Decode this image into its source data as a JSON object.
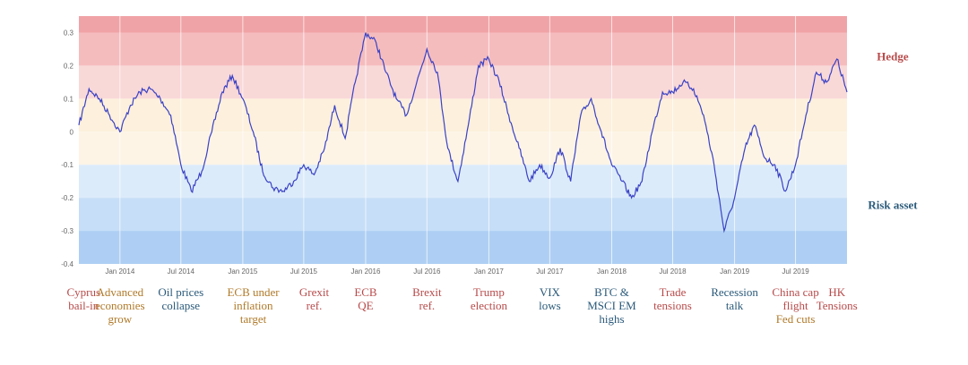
{
  "chart_data": {
    "type": "line",
    "title": "",
    "xlabel": "",
    "ylabel": "",
    "ylim": [
      -0.4,
      0.35
    ],
    "xlim": [
      "2013-09-01",
      "2019-12-01"
    ],
    "grid": "vertical",
    "y_ticks": [
      {
        "value": 0.3,
        "label": "0.3"
      },
      {
        "value": 0.2,
        "label": "0.2"
      },
      {
        "value": 0.1,
        "label": "0.1"
      },
      {
        "value": 0,
        "label": "0"
      },
      {
        "value": -0.1,
        "label": "-0.1"
      },
      {
        "value": -0.2,
        "label": "-0.2"
      },
      {
        "value": -0.3,
        "label": "-0.3"
      },
      {
        "value": -0.4,
        "label": "-0.4"
      }
    ],
    "x_ticks": [
      {
        "date": "2014-01-01",
        "label": "Jan 2014"
      },
      {
        "date": "2014-07-01",
        "label": "Jul 2014"
      },
      {
        "date": "2015-01-01",
        "label": "Jan 2015"
      },
      {
        "date": "2015-07-01",
        "label": "Jul 2015"
      },
      {
        "date": "2016-01-01",
        "label": "Jan 2016"
      },
      {
        "date": "2016-07-01",
        "label": "Jul 2016"
      },
      {
        "date": "2017-01-01",
        "label": "Jan 2017"
      },
      {
        "date": "2017-07-01",
        "label": "Jul 2017"
      },
      {
        "date": "2018-01-01",
        "label": "Jan 2018"
      },
      {
        "date": "2018-07-01",
        "label": "Jul 2018"
      },
      {
        "date": "2019-01-01",
        "label": "Jan 2019"
      },
      {
        "date": "2019-07-01",
        "label": "Jul 2019"
      }
    ],
    "bands": [
      {
        "from": 0.3,
        "to": 0.35,
        "color": "#f0a3a6"
      },
      {
        "from": 0.2,
        "to": 0.3,
        "color": "#f5bcbe"
      },
      {
        "from": 0.1,
        "to": 0.2,
        "color": "#f9d8d8"
      },
      {
        "from": 0,
        "to": 0.1,
        "color": "#fdf0dc"
      },
      {
        "from": -0.1,
        "to": 0,
        "color": "#fdf4e6"
      },
      {
        "from": -0.2,
        "to": -0.1,
        "color": "#dcebfa"
      },
      {
        "from": -0.3,
        "to": -0.2,
        "color": "#c6def7"
      },
      {
        "from": -0.4,
        "to": -0.3,
        "color": "#aecff3"
      }
    ],
    "line_color": "#3a42c4",
    "zone_labels": [
      {
        "text": "Hedge",
        "value": 0.23,
        "color": "#b84a4a"
      },
      {
        "text": "Risk asset",
        "value": -0.22,
        "color": "#2b5a7a"
      }
    ],
    "series": [
      {
        "x": [
          "2013-09-01",
          "2013-10-01",
          "2013-11-01",
          "2013-12-01",
          "2014-01-01",
          "2014-02-01",
          "2014-03-01",
          "2014-04-01",
          "2014-05-01",
          "2014-06-01",
          "2014-07-01",
          "2014-08-01",
          "2014-09-01",
          "2014-10-01",
          "2014-11-01",
          "2014-12-01",
          "2015-01-01",
          "2015-02-01",
          "2015-03-01",
          "2015-04-01",
          "2015-05-01",
          "2015-06-01",
          "2015-07-01",
          "2015-08-01",
          "2015-09-01",
          "2015-10-01",
          "2015-11-01",
          "2015-12-01",
          "2016-01-01",
          "2016-02-01",
          "2016-03-01",
          "2016-04-01",
          "2016-05-01",
          "2016-06-01",
          "2016-07-01",
          "2016-08-01",
          "2016-09-01",
          "2016-10-01",
          "2016-11-01",
          "2016-12-01",
          "2017-01-01",
          "2017-02-01",
          "2017-03-01",
          "2017-04-01",
          "2017-05-01",
          "2017-06-01",
          "2017-07-01",
          "2017-08-01",
          "2017-09-01",
          "2017-10-01",
          "2017-11-01",
          "2017-12-01",
          "2018-01-01",
          "2018-02-01",
          "2018-03-01",
          "2018-04-01",
          "2018-05-01",
          "2018-06-01",
          "2018-07-01",
          "2018-08-01",
          "2018-09-01",
          "2018-10-01",
          "2018-11-01",
          "2018-12-01",
          "2019-01-01",
          "2019-02-01",
          "2019-03-01",
          "2019-04-01",
          "2019-05-01",
          "2019-06-01",
          "2019-07-01",
          "2019-08-01",
          "2019-09-01",
          "2019-10-01",
          "2019-11-01",
          "2019-12-01"
        ],
        "values": [
          0.02,
          0.13,
          0.1,
          0.05,
          0.0,
          0.08,
          0.12,
          0.13,
          0.1,
          0.05,
          -0.1,
          -0.18,
          -0.12,
          0.0,
          0.12,
          0.17,
          0.1,
          0.0,
          -0.12,
          -0.17,
          -0.18,
          -0.15,
          -0.1,
          -0.13,
          -0.05,
          0.08,
          -0.02,
          0.15,
          0.3,
          0.27,
          0.18,
          0.1,
          0.05,
          0.15,
          0.25,
          0.18,
          -0.05,
          -0.15,
          0.02,
          0.2,
          0.22,
          0.15,
          0.05,
          -0.05,
          -0.15,
          -0.1,
          -0.14,
          -0.05,
          -0.15,
          0.05,
          0.1,
          0.0,
          -0.1,
          -0.15,
          -0.2,
          -0.15,
          0.0,
          0.12,
          0.12,
          0.15,
          0.13,
          0.05,
          -0.1,
          -0.3,
          -0.2,
          -0.05,
          0.02,
          -0.08,
          -0.1,
          -0.18,
          -0.1,
          0.05,
          0.18,
          0.15,
          0.22,
          0.12
        ]
      }
    ],
    "events": [
      {
        "lines": [
          "Cyprus",
          "bail-in"
        ],
        "date": "2013-09-15",
        "color": "#b84a4a"
      },
      {
        "lines": [
          "Advanced",
          "economies",
          "grow"
        ],
        "date": "2014-01-01",
        "color": "#b07a2a"
      },
      {
        "lines": [
          "Oil prices",
          "collapse"
        ],
        "date": "2014-07-01",
        "color": "#2b5a7a"
      },
      {
        "lines": [
          "ECB under",
          "inflation",
          "target"
        ],
        "date": "2015-02-01",
        "color": "#b07a2a"
      },
      {
        "lines": [
          "Grexit",
          "ref."
        ],
        "date": "2015-08-01",
        "color": "#b84a4a"
      },
      {
        "lines": [
          "ECB",
          "QE"
        ],
        "date": "2016-01-01",
        "color": "#b84a4a"
      },
      {
        "lines": [
          "Brexit",
          "ref."
        ],
        "date": "2016-07-01",
        "color": "#b84a4a"
      },
      {
        "lines": [
          "Trump",
          "election"
        ],
        "date": "2017-01-01",
        "color": "#b84a4a"
      },
      {
        "lines": [
          "VIX",
          "lows"
        ],
        "date": "2017-07-01",
        "color": "#2b5a7a"
      },
      {
        "lines": [
          "BTC &",
          "MSCI EM",
          "highs"
        ],
        "date": "2018-01-01",
        "color": "#2b5a7a"
      },
      {
        "lines": [
          "Trade",
          "tensions"
        ],
        "date": "2018-07-01",
        "color": "#b84a4a"
      },
      {
        "lines": [
          "Recession",
          "talk"
        ],
        "date": "2019-01-01",
        "color": "#2b5a7a"
      },
      {
        "lines": [
          "China cap",
          "flight",
          "Fed cuts"
        ],
        "date": "2019-07-01",
        "color": "#b84a4a",
        "line_colors": [
          "#b84a4a",
          "#b84a4a",
          "#b07a2a"
        ]
      },
      {
        "lines": [
          "HK",
          "Tensions"
        ],
        "date": "2019-11-01",
        "color": "#b84a4a"
      }
    ]
  }
}
